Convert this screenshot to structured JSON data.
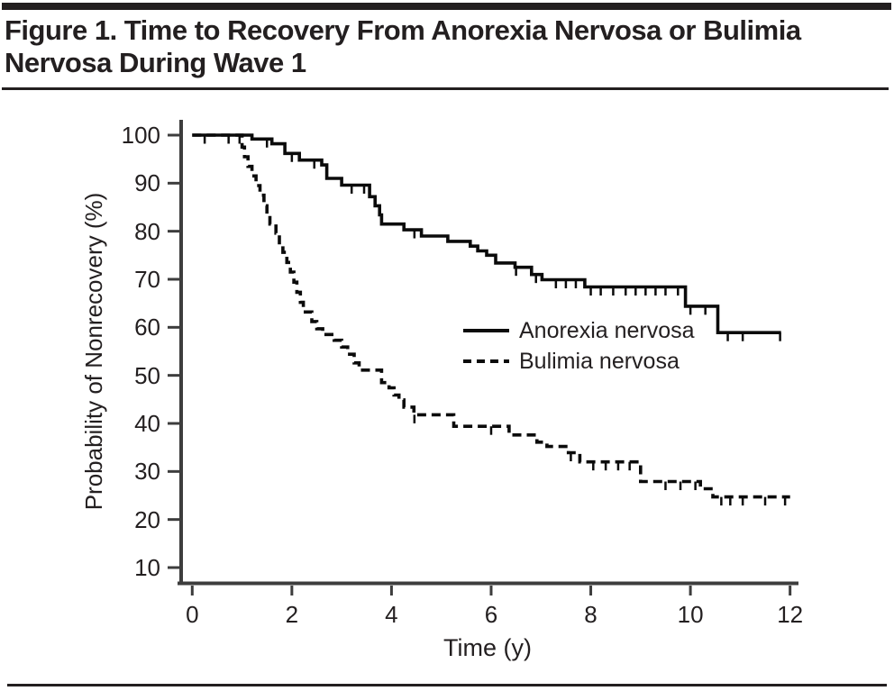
{
  "figure": {
    "title": "Figure 1. Time to Recovery From Anorexia Nervosa or Bulimia Nervosa During Wave 1"
  },
  "chart_data": {
    "type": "line",
    "subtype": "kaplan_meier_step",
    "title": "Time to Recovery From Anorexia Nervosa or Bulimia Nervosa During Wave 1",
    "xlabel": "Time (y)",
    "ylabel": "Probability of Nonrecovery (%)",
    "xlim": [
      0,
      12.2
    ],
    "ylim": [
      5,
      103
    ],
    "x_ticks": [
      0,
      2,
      4,
      6,
      8,
      10,
      12
    ],
    "y_ticks": [
      10,
      20,
      30,
      40,
      50,
      60,
      70,
      80,
      90,
      100
    ],
    "grid": false,
    "legend_position": "inside-right-middle",
    "series": [
      {
        "name": "Anorexia nervosa",
        "style": "solid",
        "end_x": 11.82,
        "steps": [
          [
            0,
            100
          ],
          [
            1.2,
            99.2
          ],
          [
            1.6,
            98.2
          ],
          [
            1.86,
            96.2
          ],
          [
            2.15,
            94.8
          ],
          [
            2.6,
            93.8
          ],
          [
            2.7,
            91.0
          ],
          [
            3.0,
            89.6
          ],
          [
            3.56,
            87.2
          ],
          [
            3.67,
            85.3
          ],
          [
            3.76,
            83.4
          ],
          [
            3.8,
            81.5
          ],
          [
            4.25,
            80.3
          ],
          [
            4.6,
            79.0
          ],
          [
            5.13,
            77.9
          ],
          [
            5.58,
            76.9
          ],
          [
            5.73,
            75.9
          ],
          [
            5.91,
            75.0
          ],
          [
            6.09,
            73.4
          ],
          [
            6.48,
            72.5
          ],
          [
            6.81,
            71.0
          ],
          [
            7.02,
            69.9
          ],
          [
            7.88,
            68.4
          ],
          [
            9.9,
            64.4
          ],
          [
            10.55,
            58.9
          ]
        ],
        "censor_marks_x": [
          0.25,
          0.73,
          0.95,
          1.5,
          2.0,
          2.45,
          3.2,
          3.45,
          4.46,
          6.5,
          6.9,
          7.3,
          7.5,
          7.7,
          8.0,
          8.2,
          8.45,
          8.7,
          8.9,
          9.1,
          9.3,
          9.5,
          9.75,
          10.0,
          10.3,
          10.75,
          11.05,
          11.8
        ]
      },
      {
        "name": "Bulimia nervosa",
        "style": "dashed",
        "end_x": 12.0,
        "steps": [
          [
            0,
            100
          ],
          [
            1.0,
            97.5
          ],
          [
            1.05,
            95.5
          ],
          [
            1.12,
            93.5
          ],
          [
            1.2,
            91.5
          ],
          [
            1.28,
            89.5
          ],
          [
            1.36,
            87.5
          ],
          [
            1.44,
            85.3
          ],
          [
            1.5,
            83.2
          ],
          [
            1.56,
            81.5
          ],
          [
            1.68,
            79.6
          ],
          [
            1.75,
            77.6
          ],
          [
            1.82,
            75.6
          ],
          [
            1.9,
            73.5
          ],
          [
            1.97,
            71.5
          ],
          [
            2.04,
            69.4
          ],
          [
            2.1,
            67.3
          ],
          [
            2.17,
            65.2
          ],
          [
            2.23,
            63.2
          ],
          [
            2.4,
            61.2
          ],
          [
            2.5,
            59.7
          ],
          [
            2.62,
            58.5
          ],
          [
            2.85,
            57.3
          ],
          [
            3.0,
            55.9
          ],
          [
            3.12,
            54.4
          ],
          [
            3.25,
            52.6
          ],
          [
            3.35,
            51.1
          ],
          [
            3.8,
            48.5
          ],
          [
            3.95,
            47.4
          ],
          [
            4.05,
            45.9
          ],
          [
            4.15,
            44.9
          ],
          [
            4.25,
            43.4
          ],
          [
            4.45,
            41.8
          ],
          [
            5.25,
            39.4
          ],
          [
            6.36,
            37.6
          ],
          [
            6.92,
            36.1
          ],
          [
            7.12,
            35.2
          ],
          [
            7.55,
            33.9
          ],
          [
            7.78,
            32.0
          ],
          [
            9.0,
            27.9
          ],
          [
            10.2,
            26.4
          ],
          [
            10.45,
            24.7
          ]
        ],
        "censor_marks_x": [
          4.46,
          6.0,
          7.6,
          8.05,
          8.3,
          8.55,
          8.78,
          9.5,
          9.8,
          10.1,
          10.62,
          10.8,
          11.05,
          11.5,
          11.9
        ]
      }
    ]
  },
  "colors": {
    "ink": "#231f20",
    "curve": "#0b0b0b",
    "axis": "#3d3d3d",
    "background": "#ffffff"
  }
}
